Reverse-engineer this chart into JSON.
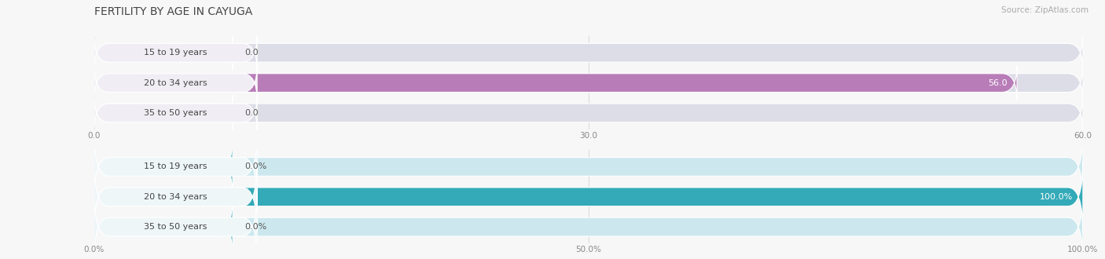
{
  "title": "FERTILITY BY AGE IN CAYUGA",
  "source": "Source: ZipAtlas.com",
  "top_chart": {
    "categories": [
      "15 to 19 years",
      "20 to 34 years",
      "35 to 50 years"
    ],
    "values": [
      0.0,
      56.0,
      0.0
    ],
    "max_val": 60.0,
    "tick_vals": [
      0.0,
      30.0,
      60.0
    ],
    "bar_color": "#b87db8",
    "bar_bg_color": "#dddde8",
    "label_bg_color": "#f0eef4",
    "label_color": "#444444"
  },
  "bottom_chart": {
    "categories": [
      "15 to 19 years",
      "20 to 34 years",
      "35 to 50 years"
    ],
    "values": [
      0.0,
      100.0,
      0.0
    ],
    "max_val": 100.0,
    "tick_vals": [
      0.0,
      50.0,
      100.0
    ],
    "bar_color": "#34aab8",
    "bar_bg_color": "#cce8ee",
    "label_bg_color": "#eef6f8",
    "label_color": "#444444"
  },
  "bg_color": "#f7f7f7",
  "title_fontsize": 10,
  "label_fontsize": 8.0,
  "value_fontsize": 8.0,
  "tick_fontsize": 7.5,
  "source_fontsize": 7.5
}
